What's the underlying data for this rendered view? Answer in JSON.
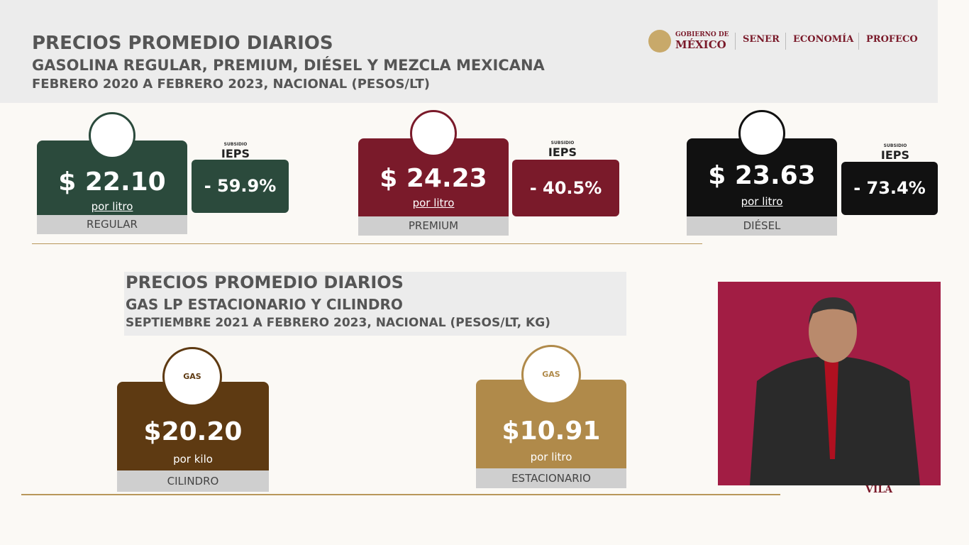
{
  "header": {
    "title": "PRECIOS PROMEDIO DIARIOS",
    "subtitle": "GASOLINA REGULAR, PREMIUM, DIÉSEL Y MEZCLA MEXICANA",
    "period": "FEBRERO 2020 A FEBRERO 2023, NACIONAL (PESOS/LT)"
  },
  "logos": [
    "GOBIERNO DE",
    "MÉXICO",
    "SENER",
    "ECONOMÍA",
    "PROFECO"
  ],
  "fuels": [
    {
      "price": "$ 22.10",
      "unit": "por litro",
      "name": "REGULAR",
      "subsidy_label": "SUBSIDIO",
      "tax": "IEPS",
      "subsidy": "- 59.9%"
    },
    {
      "price": "$ 24.23",
      "unit": "por litro",
      "name": "PREMIUM",
      "subsidy_label": "SUBSIDIO",
      "tax": "IEPS",
      "subsidy": "- 40.5%"
    },
    {
      "price": "$ 23.63",
      "unit": "por litro",
      "name": "DIÉSEL",
      "subsidy_label": "SUBSIDIO",
      "tax": "IEPS",
      "subsidy": "- 73.4%"
    }
  ],
  "gas": {
    "title": "PRECIOS PROMEDIO DIARIOS",
    "subtitle": "GAS LP ESTACIONARIO Y CILINDRO",
    "period": "SEPTIEMBRE 2021 A FEBRERO 2023, NACIONAL (PESOS/LT, KG)",
    "items": [
      {
        "icon": "GAS",
        "price": "$20.20",
        "unit": "por kilo",
        "name": "CILINDRO"
      },
      {
        "icon": "GAS",
        "price": "$10.91",
        "unit": "por litro",
        "name": "ESTACIONARIO"
      }
    ]
  },
  "footer": {
    "logo": "VILA"
  }
}
